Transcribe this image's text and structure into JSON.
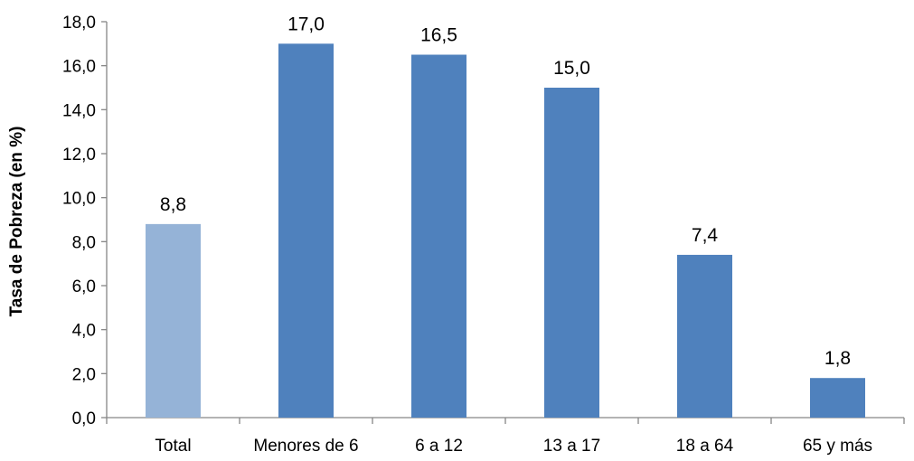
{
  "chart_data": {
    "type": "bar",
    "title": "",
    "xlabel": "",
    "ylabel": "Tasa de Pobreza (en %)",
    "categories": [
      "Total",
      "Menores de 6",
      "6 a 12",
      "13 a 17",
      "18 a 64",
      "65 y más"
    ],
    "values": [
      8.8,
      17.0,
      16.5,
      15.0,
      7.4,
      1.8
    ],
    "value_labels": [
      "8,8",
      "17,0",
      "16,5",
      "15,0",
      "7,4",
      "1,8"
    ],
    "ylim": [
      0,
      18
    ],
    "yticks": [
      "0,0",
      "2,0",
      "4,0",
      "6,0",
      "8,0",
      "10,0",
      "12,0",
      "14,0",
      "16,0",
      "18,0"
    ],
    "grid": false,
    "legend": "none",
    "colors": {
      "highlight": "#95B3D7",
      "bar": "#4F81BD",
      "axis": "#868686"
    }
  }
}
